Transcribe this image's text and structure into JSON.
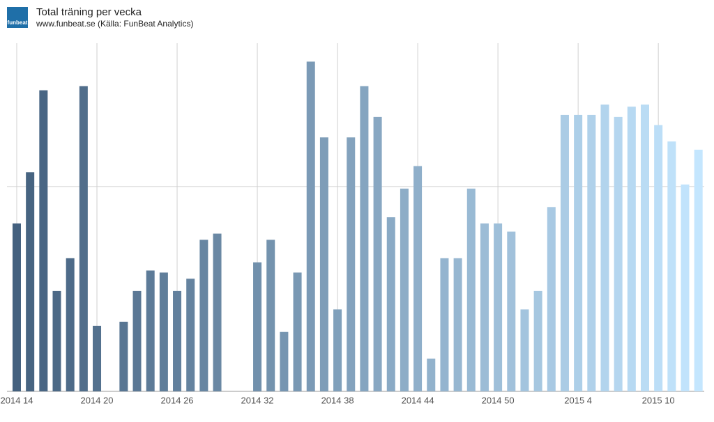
{
  "chart_data": {
    "type": "bar",
    "logo": "funbeat",
    "title": "Total träning per vecka",
    "subtitle": "www.funbeat.se (Källa: FunBeat Analytics)",
    "categories": [
      "2014 14",
      null,
      null,
      null,
      null,
      null,
      "2014 20",
      null,
      null,
      null,
      null,
      null,
      "2014 26",
      null,
      null,
      null,
      null,
      null,
      "2014 32",
      null,
      null,
      null,
      null,
      null,
      "2014 38",
      null,
      null,
      null,
      null,
      null,
      "2014 44",
      null,
      null,
      null,
      null,
      null,
      "2014 50",
      null,
      null,
      null,
      null,
      null,
      "2015 4",
      null,
      null,
      null,
      null,
      null,
      "2015 10",
      null,
      null,
      null
    ],
    "values": [
      8.2,
      10.7,
      14.7,
      4.9,
      6.5,
      14.9,
      3.2,
      null,
      3.4,
      4.9,
      5.9,
      5.8,
      4.9,
      5.5,
      7.4,
      7.7,
      null,
      null,
      6.3,
      7.4,
      2.9,
      5.8,
      16.1,
      12.4,
      4.0,
      12.4,
      14.9,
      13.4,
      8.5,
      9.9,
      11.0,
      1.6,
      6.5,
      6.5,
      9.9,
      8.2,
      8.2,
      7.8,
      4.0,
      4.9,
      9.0,
      13.5,
      13.5,
      13.5,
      14.0,
      13.4,
      13.9,
      14.0,
      13.0,
      12.2,
      10.1,
      11.8
    ],
    "color_range": [
      "#44617f",
      "#c4e6fe"
    ],
    "ylim": [
      0,
      17
    ],
    "yticks": [
      0,
      10
    ],
    "grid": true
  }
}
